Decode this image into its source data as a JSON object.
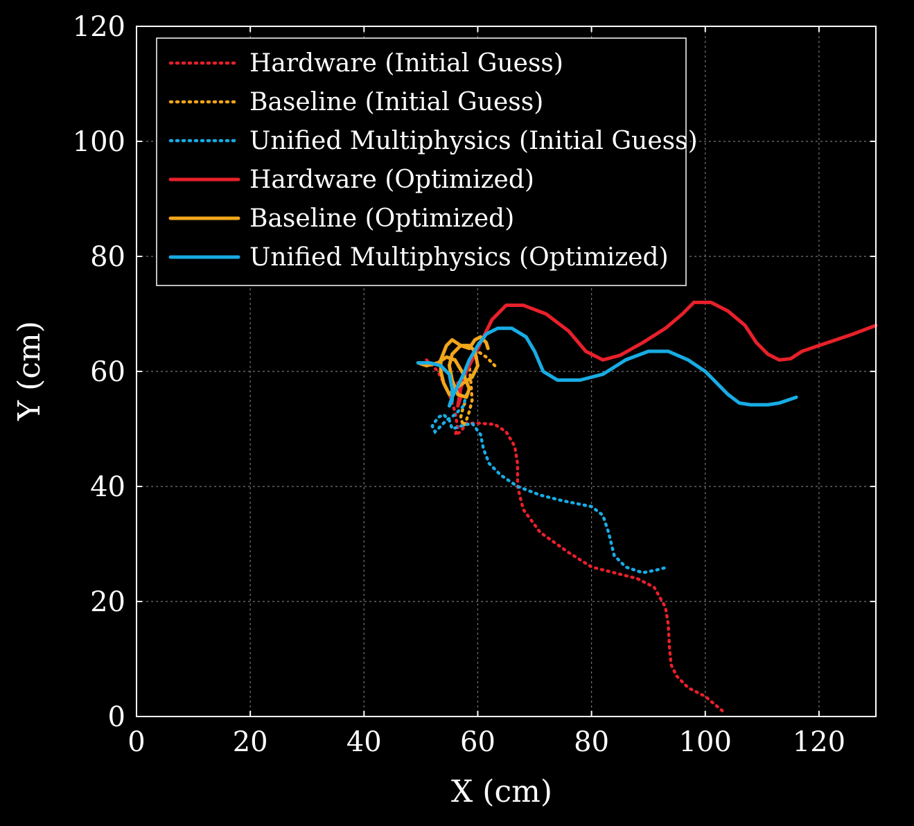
{
  "chart_data": {
    "type": "line",
    "title": "",
    "xlabel": "X (cm)",
    "ylabel": "Y (cm)",
    "xlim": [
      0,
      130
    ],
    "ylim": [
      0,
      120
    ],
    "xticks": [
      0,
      20,
      40,
      60,
      80,
      100,
      120
    ],
    "yticks": [
      0,
      20,
      40,
      60,
      80,
      100,
      120
    ],
    "grid": true,
    "legend_position": "top-left",
    "series": [
      {
        "name": "Hardware (Initial Guess)",
        "color": "#e8202a",
        "style": "dotted",
        "points": [
          [
            51,
            62
          ],
          [
            53,
            60
          ],
          [
            55,
            56
          ],
          [
            56,
            53
          ],
          [
            56.5,
            50
          ],
          [
            56,
            49
          ],
          [
            57,
            49.5
          ],
          [
            58,
            51
          ],
          [
            60,
            51
          ],
          [
            63,
            50.8
          ],
          [
            65,
            49.5
          ],
          [
            66.5,
            47
          ],
          [
            67,
            44
          ],
          [
            67,
            40
          ],
          [
            68,
            36
          ],
          [
            71,
            32
          ],
          [
            76,
            28.5
          ],
          [
            80,
            26
          ],
          [
            84,
            25
          ],
          [
            88,
            24
          ],
          [
            91,
            22.5
          ],
          [
            93,
            19
          ],
          [
            93.5,
            16
          ],
          [
            93.7,
            12
          ],
          [
            94,
            9
          ],
          [
            95,
            7
          ],
          [
            97,
            5
          ],
          [
            100,
            3.5
          ],
          [
            103,
            1
          ]
        ]
      },
      {
        "name": "Baseline (Initial Guess)",
        "color": "#f2a61a",
        "style": "dotted",
        "points": [
          [
            63,
            61
          ],
          [
            61.5,
            62.5
          ],
          [
            60,
            63.5
          ],
          [
            59,
            63
          ],
          [
            58.5,
            61
          ],
          [
            58.8,
            58
          ],
          [
            59,
            55
          ],
          [
            58.5,
            53
          ],
          [
            58,
            51.5
          ],
          [
            57.5,
            50.5
          ],
          [
            57,
            52
          ],
          [
            57.5,
            54
          ],
          [
            58,
            55
          ]
        ]
      },
      {
        "name": "Unified Multiphysics (Initial Guess)",
        "color": "#18ace4",
        "style": "dotted",
        "points": [
          [
            58,
            56
          ],
          [
            57.5,
            54
          ],
          [
            56,
            52.5
          ],
          [
            54.5,
            51.5
          ],
          [
            53.5,
            50.5
          ],
          [
            52.5,
            49.5
          ],
          [
            52,
            50.5
          ],
          [
            53,
            52
          ],
          [
            54,
            52.5
          ],
          [
            55,
            51.5
          ],
          [
            55.5,
            50
          ],
          [
            57,
            50.5
          ],
          [
            59,
            51
          ],
          [
            60.5,
            49
          ],
          [
            61,
            46.5
          ],
          [
            62,
            44
          ],
          [
            64,
            42
          ],
          [
            67,
            40
          ],
          [
            71,
            38.5
          ],
          [
            75,
            37.5
          ],
          [
            80,
            36.5
          ],
          [
            82,
            35
          ],
          [
            83,
            32
          ],
          [
            84,
            28
          ],
          [
            86,
            26
          ],
          [
            89,
            25
          ],
          [
            91.5,
            25.5
          ],
          [
            93.5,
            26
          ]
        ]
      },
      {
        "name": "Hardware (Optimized)",
        "color": "#e8202a",
        "style": "solid",
        "points": [
          [
            56.5,
            58
          ],
          [
            57,
            55.5
          ],
          [
            56.5,
            54
          ],
          [
            57,
            57
          ],
          [
            58,
            60
          ],
          [
            59.5,
            63
          ],
          [
            61,
            66
          ],
          [
            62.5,
            69
          ],
          [
            65,
            71.5
          ],
          [
            68,
            71.5
          ],
          [
            72,
            70
          ],
          [
            76,
            67
          ],
          [
            79,
            63.5
          ],
          [
            82,
            62
          ],
          [
            85,
            62.8
          ],
          [
            89,
            65
          ],
          [
            93,
            67.5
          ],
          [
            96,
            70
          ],
          [
            98,
            72
          ],
          [
            101,
            72
          ],
          [
            104,
            70.5
          ],
          [
            107,
            68
          ],
          [
            109,
            65
          ],
          [
            111,
            63
          ],
          [
            113,
            62
          ],
          [
            115,
            62.2
          ],
          [
            117,
            63.5
          ],
          [
            120,
            64.5
          ],
          [
            123,
            65.5
          ],
          [
            126,
            66.5
          ],
          [
            130,
            68
          ]
        ]
      },
      {
        "name": "Baseline (Optimized)",
        "color": "#f2a61a",
        "style": "solid",
        "points": [
          [
            49.5,
            61.5
          ],
          [
            51,
            61
          ],
          [
            53,
            61.5
          ],
          [
            54.5,
            62.5
          ],
          [
            56,
            62
          ],
          [
            57.5,
            59.5
          ],
          [
            58.5,
            57
          ],
          [
            58,
            55.5
          ],
          [
            56.5,
            56
          ],
          [
            55.5,
            58.5
          ],
          [
            55,
            61
          ],
          [
            55.5,
            63
          ],
          [
            57,
            64.5
          ],
          [
            58.5,
            64.5
          ],
          [
            59.5,
            63.5
          ],
          [
            60,
            61
          ],
          [
            59,
            59
          ],
          [
            57.5,
            58
          ],
          [
            56,
            57
          ],
          [
            55,
            56
          ],
          [
            54,
            58
          ],
          [
            53.5,
            60
          ],
          [
            53.5,
            62
          ],
          [
            54.5,
            64.5
          ],
          [
            55.5,
            65.5
          ],
          [
            57,
            64.5
          ],
          [
            58.5,
            64
          ],
          [
            59.5,
            65.5
          ],
          [
            60.5,
            66
          ],
          [
            61.5,
            65
          ],
          [
            61.8,
            64
          ]
        ]
      },
      {
        "name": "Unified Multiphysics (Optimized)",
        "color": "#18ace4",
        "style": "solid",
        "points": [
          [
            49.5,
            61.5
          ],
          [
            51.5,
            61.5
          ],
          [
            53.5,
            61
          ],
          [
            55,
            59.5
          ],
          [
            55.5,
            57
          ],
          [
            55.5,
            55
          ],
          [
            55,
            54
          ],
          [
            55.5,
            55.5
          ],
          [
            56.5,
            57.5
          ],
          [
            57.5,
            59.5
          ],
          [
            58.5,
            62
          ],
          [
            60,
            64.5
          ],
          [
            61.5,
            66.5
          ],
          [
            63.5,
            67.5
          ],
          [
            66,
            67.5
          ],
          [
            68.5,
            66
          ],
          [
            70,
            63.5
          ],
          [
            71.5,
            60
          ],
          [
            74,
            58.5
          ],
          [
            78,
            58.5
          ],
          [
            82,
            59.5
          ],
          [
            86,
            62
          ],
          [
            90,
            63.5
          ],
          [
            93.5,
            63.5
          ],
          [
            97,
            62
          ],
          [
            100,
            60
          ],
          [
            102,
            58
          ],
          [
            104,
            56
          ],
          [
            106,
            54.5
          ],
          [
            108,
            54.2
          ],
          [
            111,
            54.2
          ],
          [
            113,
            54.5
          ],
          [
            116,
            55.5
          ]
        ]
      }
    ]
  }
}
